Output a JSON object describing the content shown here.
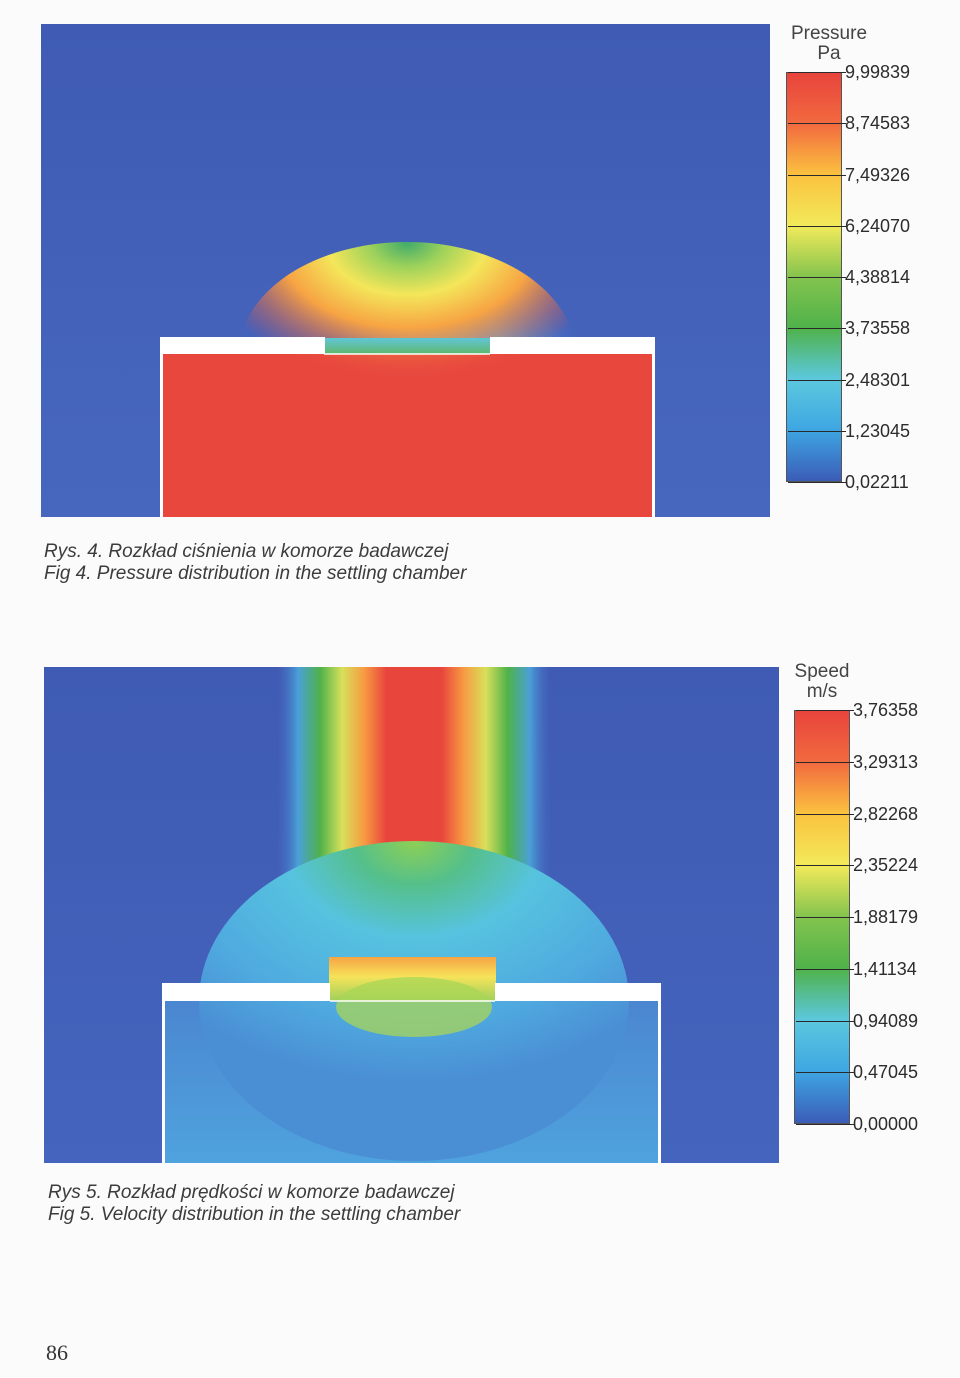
{
  "figures": [
    {
      "id": "pressure",
      "caption_pl": "Rys. 4. Rozkład ciśnienia w komorze badawczej",
      "caption_en": "Fig 4. Pressure distribution in the settling chamber",
      "legend": {
        "title": "Pressure",
        "unit": "Pa",
        "ticks": [
          "9,99839",
          "8,74583",
          "7,49326",
          "6,24070",
          "4,38814",
          "3,73558",
          "2,48301",
          "1,23045",
          "0,02211"
        ],
        "colors": [
          "#e8443c",
          "#f26a3f",
          "#fbc23f",
          "#f2ea5a",
          "#84c44e",
          "#4fb24a",
          "#5cc8de",
          "#3ea6e2",
          "#3b5cb8"
        ]
      },
      "chart_data": {
        "type": "heatmap",
        "quantity": "Pressure",
        "unit": "Pa",
        "colorbar_range": [
          0.02211,
          9.99839
        ],
        "colorbar_ticks": [
          9.99839,
          8.74583,
          7.49326,
          6.2407,
          4.38814,
          3.73558,
          2.48301,
          1.23045,
          0.02211
        ]
      }
    },
    {
      "id": "velocity",
      "caption_pl": "Rys 5. Rozkład prędkości w komorze badawczej",
      "caption_en": "Fig 5. Velocity distribution in the settling chamber",
      "legend": {
        "title": "Speed",
        "unit": "m/s",
        "ticks": [
          "3,76358",
          "3,29313",
          "2,82268",
          "2,35224",
          "1,88179",
          "1,41134",
          "0,94089",
          "0,47045",
          "0,00000"
        ],
        "colors": [
          "#e8443c",
          "#f26a3f",
          "#fbc23f",
          "#f2ea5a",
          "#84c44e",
          "#4fb24a",
          "#5cc8de",
          "#3ea6e2",
          "#3b5cb8"
        ]
      },
      "chart_data": {
        "type": "heatmap",
        "quantity": "Speed",
        "unit": "m/s",
        "colorbar_range": [
          0.0,
          3.76358
        ],
        "colorbar_ticks": [
          3.76358,
          3.29313,
          2.82268,
          2.35224,
          1.88179,
          1.41134,
          0.94089,
          0.47045,
          0.0
        ]
      }
    }
  ],
  "page_number": "86"
}
